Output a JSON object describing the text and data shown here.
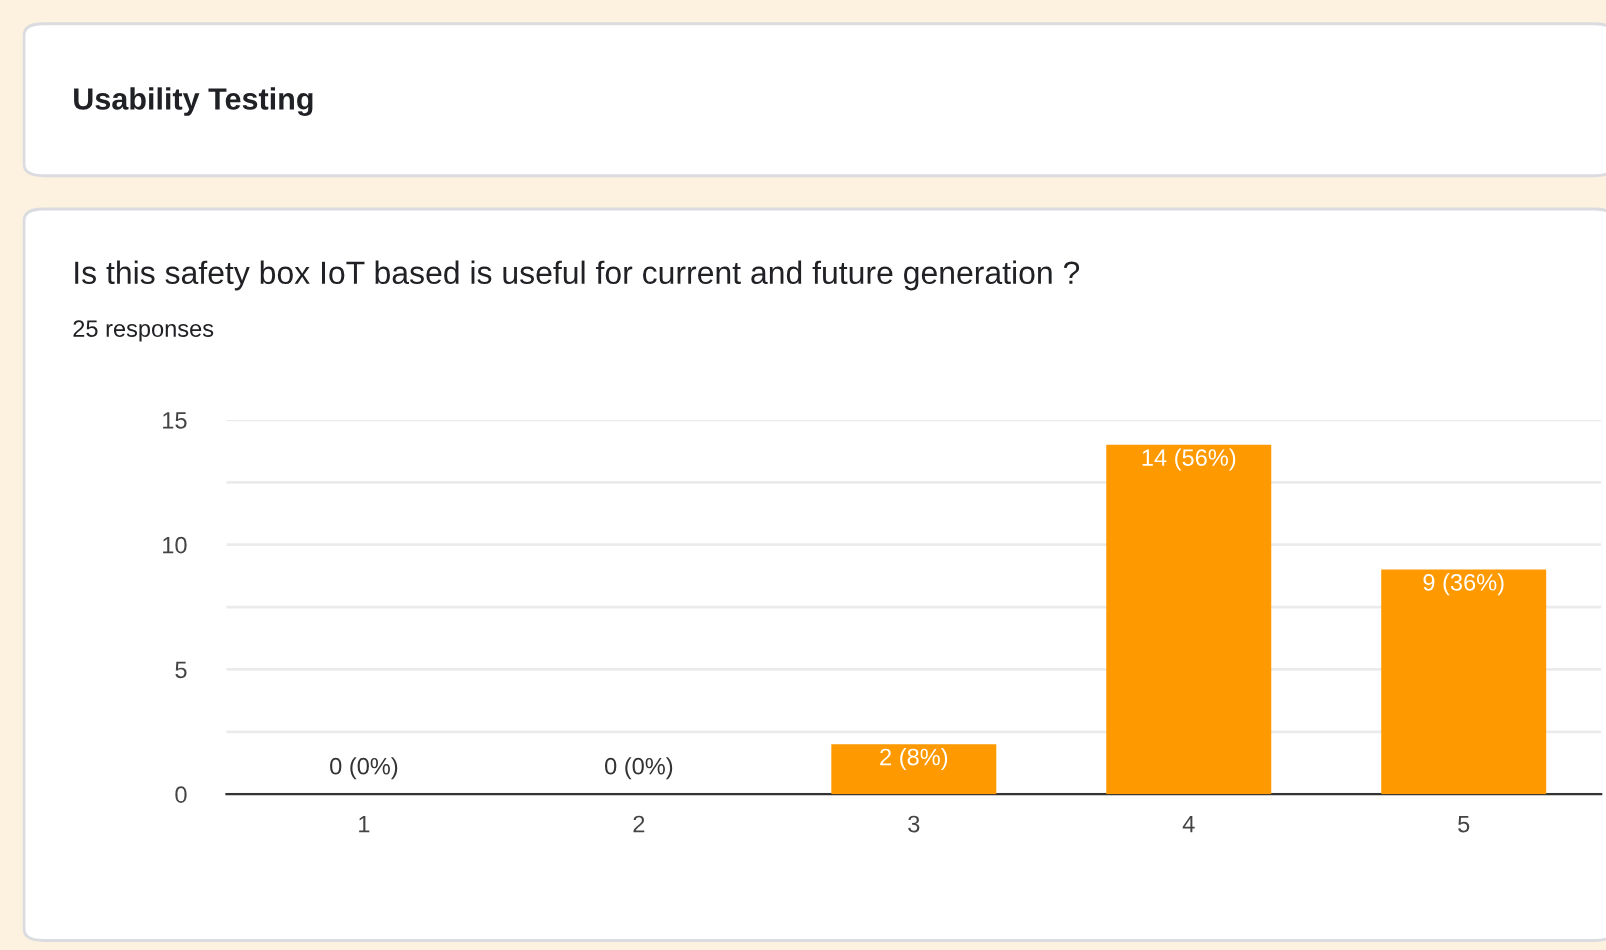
{
  "chart_data": {
    "type": "bar",
    "title": "Usability Testing",
    "subtitle": "Is this safety box IoT based is useful for current and future generation ?",
    "annotations": [
      "25 responses"
    ],
    "categories": [
      "1",
      "2",
      "3",
      "4",
      "5"
    ],
    "values": [
      0,
      0,
      2,
      14,
      9
    ],
    "value_labels": [
      "0 (0%)",
      "0 (0%)",
      "2 (8%)",
      "14 (56%)",
      "9 (36%)"
    ],
    "color": "#ff9900",
    "ylim": [
      0,
      15
    ],
    "yticks": [
      0,
      {
        "value": 2.5,
        "label": null
      },
      5,
      {
        "value": 7.5,
        "label": null
      },
      10,
      {
        "value": 12.5,
        "label": null
      },
      15
    ],
    "grid": "y",
    "legend": false
  }
}
